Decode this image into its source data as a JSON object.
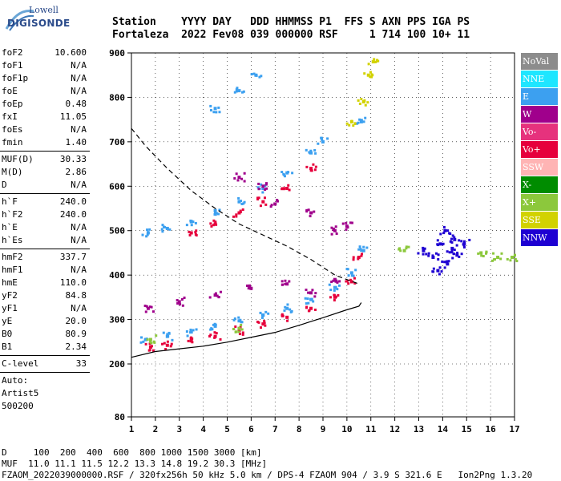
{
  "logo": {
    "top": "Lowell",
    "bottom": "DIGISONDE"
  },
  "header": {
    "line1": "Station    YYYY DAY   DDD HHMMSS P1  FFS S AXN PPS IGA PS",
    "line2": "Fortaleza  2022 Fev08 039 000000 RSF     1 714 100 10+ 11"
  },
  "params": {
    "group1": [
      {
        "name": "foF2",
        "value": "10.600"
      },
      {
        "name": "foF1",
        "value": "N/A"
      },
      {
        "name": "foF1p",
        "value": "N/A"
      },
      {
        "name": "foE",
        "value": "N/A"
      },
      {
        "name": "foEp",
        "value": "0.48"
      },
      {
        "name": "fxI",
        "value": "11.05"
      },
      {
        "name": "foEs",
        "value": "N/A"
      },
      {
        "name": "fmin",
        "value": "1.40"
      }
    ],
    "group2": [
      {
        "name": "MUF(D)",
        "value": "30.33"
      },
      {
        "name": "M(D)",
        "value": "2.86"
      },
      {
        "name": "D",
        "value": "N/A"
      }
    ],
    "group3": [
      {
        "name": "h`F",
        "value": "240.0"
      },
      {
        "name": "h`F2",
        "value": "240.0"
      },
      {
        "name": "h`E",
        "value": "N/A"
      },
      {
        "name": "h`Es",
        "value": "N/A"
      }
    ],
    "group4": [
      {
        "name": "hmF2",
        "value": "337.7"
      },
      {
        "name": "hmF1",
        "value": "N/A"
      },
      {
        "name": "hmE",
        "value": "110.0"
      },
      {
        "name": "yF2",
        "value": "84.8"
      },
      {
        "name": "yF1",
        "value": "N/A"
      },
      {
        "name": "yE",
        "value": "20.0"
      },
      {
        "name": "B0",
        "value": "80.9"
      },
      {
        "name": "B1",
        "value": "2.34"
      }
    ],
    "group5": [
      {
        "name": "C-level",
        "value": "33"
      }
    ]
  },
  "trailer": {
    "line1": "Auto:",
    "line2": "Artist5",
    "line3": "500200"
  },
  "legend": [
    {
      "label": "NoVal",
      "color": "#8c8c8c"
    },
    {
      "label": "NNE",
      "color": "#1ee6ff"
    },
    {
      "label": "E",
      "color": "#3ca0f0"
    },
    {
      "label": "W",
      "color": "#a0008c"
    },
    {
      "label": "Vo-",
      "color": "#e6327d"
    },
    {
      "label": "Vo+",
      "color": "#e6003c"
    },
    {
      "label": "SSW",
      "color": "#ffb4b4"
    },
    {
      "label": "X-",
      "color": "#008c00"
    },
    {
      "label": "X+",
      "color": "#8cc83c"
    },
    {
      "label": "SSE",
      "color": "#d2d200"
    },
    {
      "label": "NNW",
      "color": "#1e00d2"
    }
  ],
  "footer": {
    "line1": "D     100  200  400  600  800 1000 1500 3000 [km]",
    "line2": "MUF  11.0 11.1 11.5 12.2 13.3 14.8 19.2 30.3 [MHz]",
    "line3": "FZAOM_2022039000000.RSF / 320fx256h 50 kHz 5.0 km / DPS-4 FZAOM 904 / 3.9 S 321.6 E   Ion2Png 1.3.20"
  },
  "chart_data": {
    "type": "scatter",
    "title": "",
    "xlabel": "",
    "ylabel": "",
    "xlim": [
      1,
      17
    ],
    "ylim": [
      80,
      900
    ],
    "x_ticks": [
      1,
      2,
      3,
      4,
      5,
      6,
      7,
      8,
      9,
      10,
      11,
      12,
      13,
      14,
      15,
      16,
      17
    ],
    "y_ticks": [
      80,
      200,
      300,
      400,
      500,
      600,
      700,
      800,
      900
    ],
    "grid": true,
    "series": [
      {
        "name": "E",
        "values": [
          [
            1.6,
            255
          ],
          [
            2.5,
            262
          ],
          [
            3.5,
            272
          ],
          [
            4.5,
            285
          ],
          [
            5.5,
            297
          ],
          [
            6.5,
            310
          ],
          [
            7.5,
            325
          ],
          [
            8.5,
            345
          ],
          [
            9.5,
            372
          ],
          [
            10.2,
            405
          ],
          [
            10.7,
            455
          ],
          [
            1.7,
            495
          ],
          [
            2.5,
            505
          ],
          [
            3.5,
            520
          ],
          [
            4.5,
            545
          ],
          [
            5.5,
            565
          ],
          [
            6.5,
            595
          ],
          [
            7.5,
            630
          ],
          [
            8.5,
            675
          ],
          [
            9.0,
            700
          ],
          [
            10.6,
            745
          ],
          [
            4.5,
            775
          ],
          [
            5.5,
            815
          ],
          [
            6.2,
            850
          ]
        ]
      },
      {
        "name": "Vo+",
        "values": [
          [
            1.8,
            238
          ],
          [
            2.5,
            242
          ],
          [
            3.5,
            252
          ],
          [
            4.5,
            262
          ],
          [
            5.5,
            275
          ],
          [
            6.5,
            290
          ],
          [
            7.5,
            305
          ],
          [
            8.5,
            325
          ],
          [
            9.5,
            350
          ],
          [
            10.2,
            385
          ],
          [
            10.5,
            440
          ],
          [
            3.5,
            495
          ],
          [
            4.5,
            515
          ],
          [
            5.5,
            540
          ],
          [
            6.5,
            565
          ],
          [
            7.5,
            595
          ],
          [
            8.5,
            640
          ]
        ]
      },
      {
        "name": "W",
        "values": [
          [
            1.7,
            325
          ],
          [
            3.0,
            340
          ],
          [
            4.5,
            355
          ],
          [
            6.0,
            370
          ],
          [
            7.5,
            380
          ],
          [
            8.5,
            360
          ],
          [
            9.5,
            390
          ],
          [
            5.5,
            620
          ],
          [
            6.5,
            600
          ],
          [
            7.0,
            560
          ],
          [
            8.5,
            540
          ],
          [
            9.5,
            500
          ],
          [
            10.0,
            510
          ]
        ]
      },
      {
        "name": "SSE",
        "values": [
          [
            10.2,
            745
          ],
          [
            10.7,
            790
          ],
          [
            10.9,
            850
          ],
          [
            11.1,
            880
          ]
        ]
      },
      {
        "name": "NNW",
        "values": [
          [
            13.2,
            455
          ],
          [
            13.6,
            440
          ],
          [
            13.9,
            470
          ],
          [
            14.2,
            425
          ],
          [
            14.4,
            460
          ],
          [
            14.6,
            445
          ],
          [
            14.9,
            470
          ],
          [
            13.8,
            410
          ],
          [
            14.1,
            500
          ],
          [
            14.5,
            480
          ]
        ]
      },
      {
        "name": "X+",
        "values": [
          [
            1.8,
            255
          ],
          [
            5.5,
            280
          ],
          [
            12.4,
            455
          ],
          [
            15.6,
            450
          ],
          [
            16.3,
            440
          ],
          [
            16.9,
            440
          ]
        ]
      }
    ],
    "trace_virtual_height": [
      [
        1.0,
        215
      ],
      [
        2.0,
        228
      ],
      [
        3.0,
        234
      ],
      [
        4.0,
        240
      ],
      [
        5.0,
        249
      ],
      [
        6.0,
        260
      ],
      [
        7.0,
        271
      ],
      [
        8.0,
        287
      ],
      [
        9.0,
        304
      ],
      [
        10.0,
        322
      ],
      [
        10.5,
        330
      ],
      [
        10.6,
        338
      ]
    ],
    "profile_true_height": [
      [
        1.0,
        730
      ],
      [
        1.6,
        690
      ],
      [
        2.5,
        640
      ],
      [
        3.5,
        590
      ],
      [
        4.5,
        550
      ],
      [
        5.5,
        515
      ],
      [
        6.5,
        490
      ],
      [
        7.5,
        465
      ],
      [
        8.5,
        435
      ],
      [
        9.5,
        400
      ],
      [
        10.5,
        380
      ]
    ]
  }
}
